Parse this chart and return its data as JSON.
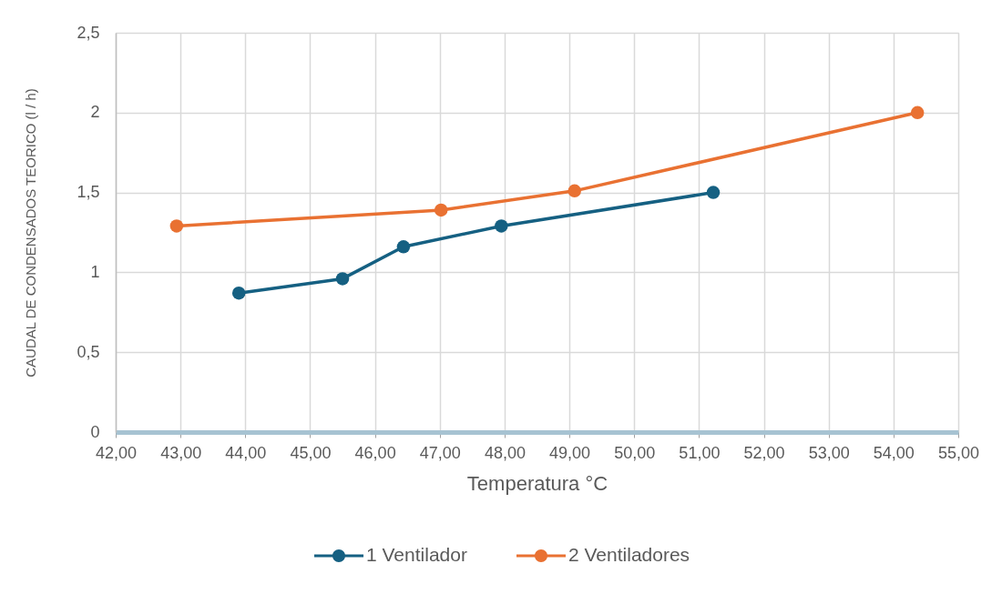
{
  "chart_data": {
    "type": "line",
    "xlabel": "Temperatura °C",
    "ylabel": "CAUDAL DE CONDENSADOS TEORICO (l / h)",
    "series": [
      {
        "name": "1 Ventilador",
        "color": "#156082",
        "x": [
          43.9,
          45.5,
          46.44,
          47.95,
          51.22
        ],
        "values": [
          0.87,
          0.96,
          1.16,
          1.29,
          1.5
        ]
      },
      {
        "name": "2 Ventiladores",
        "color": "#e97132",
        "x": [
          42.94,
          47.02,
          49.08,
          54.37
        ],
        "values": [
          1.29,
          1.39,
          1.51,
          2.0
        ]
      }
    ],
    "xlim": [
      42,
      55
    ],
    "xticks": [
      {
        "value": 42,
        "label": "42,00"
      },
      {
        "value": 43,
        "label": "43,00"
      },
      {
        "value": 44,
        "label": "44,00"
      },
      {
        "value": 45,
        "label": "45,00"
      },
      {
        "value": 46,
        "label": "46,00"
      },
      {
        "value": 47,
        "label": "47,00"
      },
      {
        "value": 48,
        "label": "48,00"
      },
      {
        "value": 49,
        "label": "49,00"
      },
      {
        "value": 50,
        "label": "50,00"
      },
      {
        "value": 51,
        "label": "51,00"
      },
      {
        "value": 52,
        "label": "52,00"
      },
      {
        "value": 53,
        "label": "53,00"
      },
      {
        "value": 54,
        "label": "54,00"
      },
      {
        "value": 55,
        "label": "55,00"
      }
    ],
    "ylim": [
      0,
      2.5
    ],
    "yticks": [
      0,
      {
        "value": 0.5,
        "label": "0,5"
      },
      1,
      {
        "value": 1.5,
        "label": "1,5"
      },
      2,
      {
        "value": 2.5,
        "label": "2,5"
      }
    ],
    "grid": true,
    "legend": "bottom",
    "marker": "circle",
    "line_style": "solid"
  }
}
